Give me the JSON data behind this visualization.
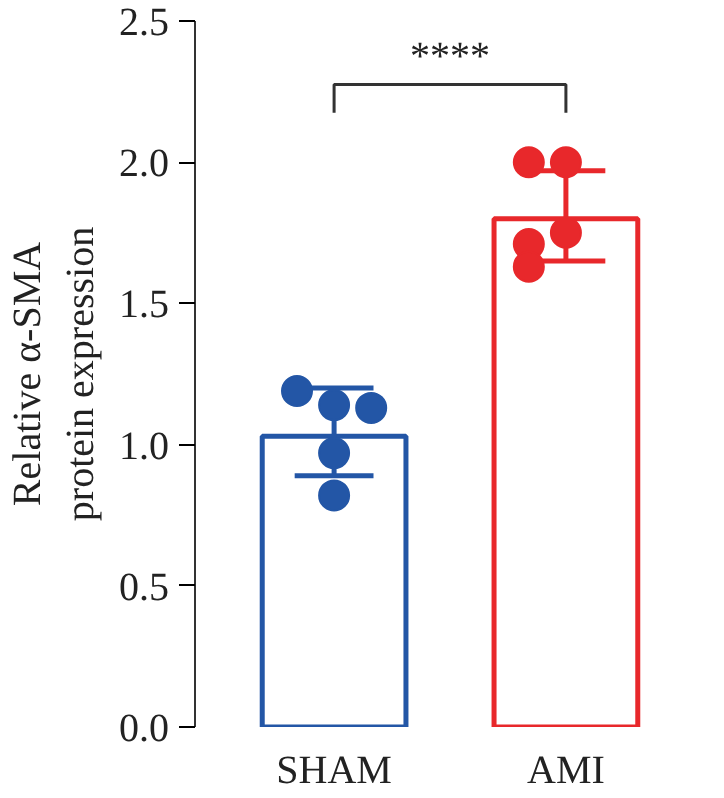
{
  "chart_data": {
    "type": "bar",
    "ylabel": "Relative α-SMA\nprotein expression",
    "categories": [
      "SHAM",
      "AMI"
    ],
    "series": [
      {
        "values": [
          1.03,
          1.8
        ],
        "colors": [
          "#2356a6",
          "#e8282b"
        ],
        "errors": [
          [
            0.89,
            1.2
          ],
          [
            1.65,
            1.97
          ]
        ]
      },
      {
        "type": "scatter",
        "x": [
          "SHAM",
          "SHAM",
          "SHAM",
          "SHAM",
          "SHAM",
          "AMI",
          "AMI",
          "AMI",
          "AMI",
          "AMI"
        ],
        "values": [
          1.14,
          1.19,
          1.13,
          0.97,
          0.82,
          2.0,
          2.0,
          1.75,
          1.71,
          1.63
        ],
        "colors": [
          "#2356a6",
          "#2356a6",
          "#2356a6",
          "#2356a6",
          "#2356a6",
          "#e8282b",
          "#e8282b",
          "#e8282b",
          "#e8282b",
          "#e8282b"
        ]
      }
    ],
    "ylim": [
      0,
      2.5
    ],
    "yticks": [
      {
        "value": 0,
        "label": "0.0"
      },
      0.5,
      {
        "value": 1,
        "label": "1.0"
      },
      1.5,
      {
        "value": 2,
        "label": "2.0"
      },
      2.5
    ],
    "annotations": [
      "****"
    ],
    "grid": false,
    "marker": "circle"
  }
}
